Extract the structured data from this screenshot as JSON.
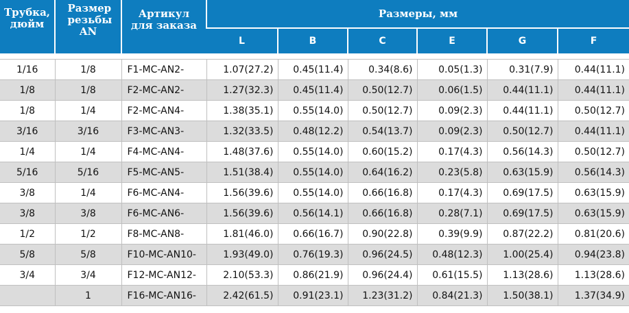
{
  "headers": {
    "tube": "Трубка, дюйм",
    "thread_line1": "Размер резьбы",
    "thread_line2": "AN",
    "article_line1": "Артикул",
    "article_line2": "для заказа",
    "dimensions": "Размеры, мм",
    "sub": [
      "L",
      "B",
      "C",
      "E",
      "G",
      "F"
    ]
  },
  "rows": [
    {
      "tube": "1/16",
      "thread": "1/8",
      "article": "F1-MC-AN2-",
      "L": "1.07(27.2)",
      "B": "0.45(11.4)",
      "C": "0.34(8.6)",
      "E": "0.05(1.3)",
      "G": "0.31(7.9)",
      "F": "0.44(11.1)"
    },
    {
      "tube": "1/8",
      "thread": "1/8",
      "article": "F2-MC-AN2-",
      "L": "1.27(32.3)",
      "B": "0.45(11.4)",
      "C": "0.50(12.7)",
      "E": "0.06(1.5)",
      "G": "0.44(11.1)",
      "F": "0.44(11.1)"
    },
    {
      "tube": "1/8",
      "thread": "1/4",
      "article": "F2-MC-AN4-",
      "L": "1.38(35.1)",
      "B": "0.55(14.0)",
      "C": "0.50(12.7)",
      "E": "0.09(2.3)",
      "G": "0.44(11.1)",
      "F": "0.50(12.7)"
    },
    {
      "tube": "3/16",
      "thread": "3/16",
      "article": "F3-MC-AN3-",
      "L": "1.32(33.5)",
      "B": "0.48(12.2)",
      "C": "0.54(13.7)",
      "E": "0.09(2.3)",
      "G": "0.50(12.7)",
      "F": "0.44(11.1)"
    },
    {
      "tube": "1/4",
      "thread": "1/4",
      "article": "F4-MC-AN4-",
      "L": "1.48(37.6)",
      "B": "0.55(14.0)",
      "C": "0.60(15.2)",
      "E": "0.17(4.3)",
      "G": "0.56(14.3)",
      "F": "0.50(12.7)"
    },
    {
      "tube": "5/16",
      "thread": "5/16",
      "article": "F5-MC-AN5-",
      "L": "1.51(38.4)",
      "B": "0.55(14.0)",
      "C": "0.64(16.2)",
      "E": "0.23(5.8)",
      "G": "0.63(15.9)",
      "F": "0.56(14.3)"
    },
    {
      "tube": "3/8",
      "thread": "1/4",
      "article": "F6-MC-AN4-",
      "L": "1.56(39.6)",
      "B": "0.55(14.0)",
      "C": "0.66(16.8)",
      "E": "0.17(4.3)",
      "G": "0.69(17.5)",
      "F": "0.63(15.9)"
    },
    {
      "tube": "3/8",
      "thread": "3/8",
      "article": "F6-MC-AN6-",
      "L": "1.56(39.6)",
      "B": "0.56(14.1)",
      "C": "0.66(16.8)",
      "E": "0.28(7.1)",
      "G": "0.69(17.5)",
      "F": "0.63(15.9)"
    },
    {
      "tube": "1/2",
      "thread": "1/2",
      "article": "F8-MC-AN8-",
      "L": "1.81(46.0)",
      "B": "0.66(16.7)",
      "C": "0.90(22.8)",
      "E": "0.39(9.9)",
      "G": "0.87(22.2)",
      "F": "0.81(20.6)"
    },
    {
      "tube": "5/8",
      "thread": "5/8",
      "article": "F10-MC-AN10-",
      "L": "1.93(49.0)",
      "B": "0.76(19.3)",
      "C": "0.96(24.5)",
      "E": "0.48(12.3)",
      "G": "1.00(25.4)",
      "F": "0.94(23.8)"
    },
    {
      "tube": "3/4",
      "thread": "3/4",
      "article": "F12-MC-AN12-",
      "L": "2.10(53.3)",
      "B": "0.86(21.9)",
      "C": "0.96(24.4)",
      "E": "0.61(15.5)",
      "G": "1.13(28.6)",
      "F": "1.13(28.6)"
    },
    {
      "tube": "",
      "thread": "1",
      "article": "F16-MC-AN16-",
      "L": "2.42(61.5)",
      "B": "0.91(23.1)",
      "C": "1.23(31.2)",
      "E": "0.84(21.3)",
      "G": "1.50(38.1)",
      "F": "1.37(34.9)"
    }
  ]
}
